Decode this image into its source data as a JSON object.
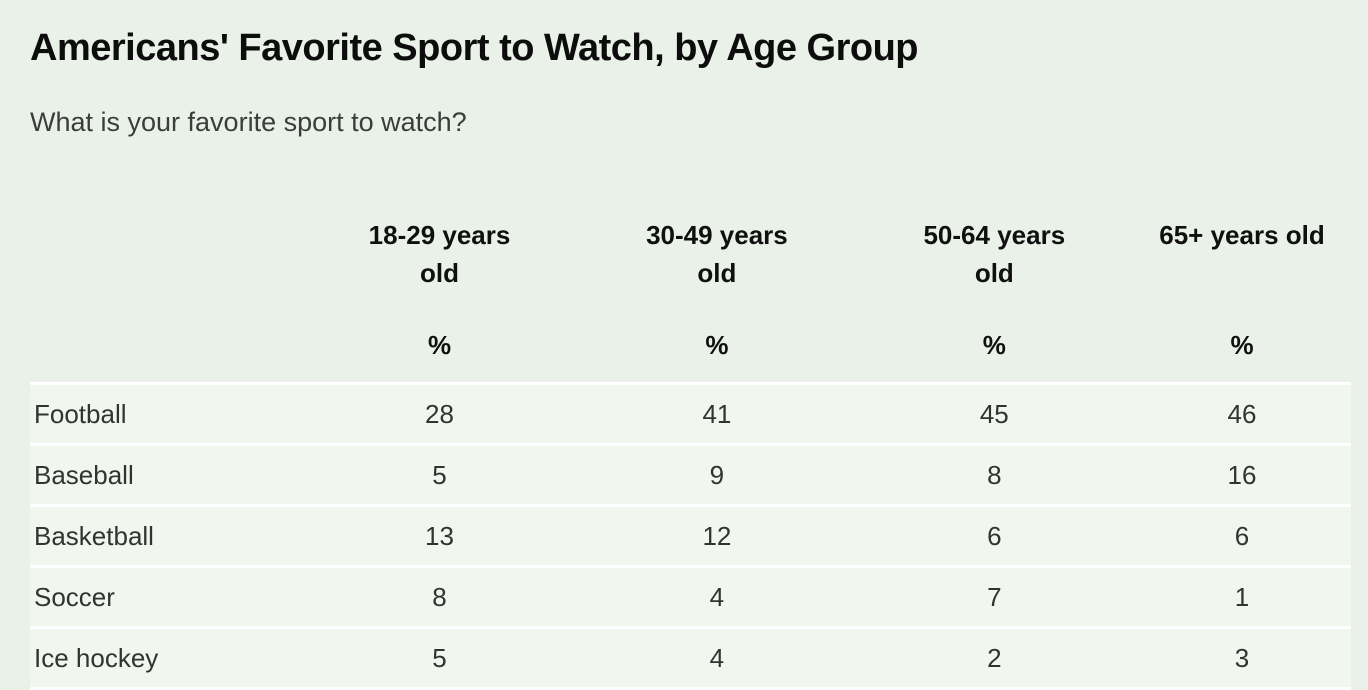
{
  "chart_data": {
    "type": "table",
    "title": "Americans' Favorite Sport to Watch, by Age Group",
    "subtitle": "What is your favorite sport to watch?",
    "unit_label": "%",
    "columns": [
      "18-29 years old",
      "30-49 years old",
      "50-64 years old",
      "65+ years old"
    ],
    "rows": [
      {
        "label": "Football",
        "values": [
          28,
          41,
          45,
          46
        ]
      },
      {
        "label": "Baseball",
        "values": [
          5,
          9,
          8,
          16
        ]
      },
      {
        "label": "Basketball",
        "values": [
          13,
          12,
          6,
          6
        ]
      },
      {
        "label": "Soccer",
        "values": [
          8,
          4,
          7,
          1
        ]
      },
      {
        "label": "Ice hockey",
        "values": [
          5,
          4,
          2,
          3
        ]
      }
    ],
    "layout": {
      "legend": "none",
      "grid": "horizontal-white-separators"
    },
    "colors": {
      "page_bg": "#eaf1e9",
      "row_bg": "#f1f6ef",
      "separator": "#ffffff",
      "title_text": "#0d0d0d",
      "body_text": "#313431"
    }
  }
}
